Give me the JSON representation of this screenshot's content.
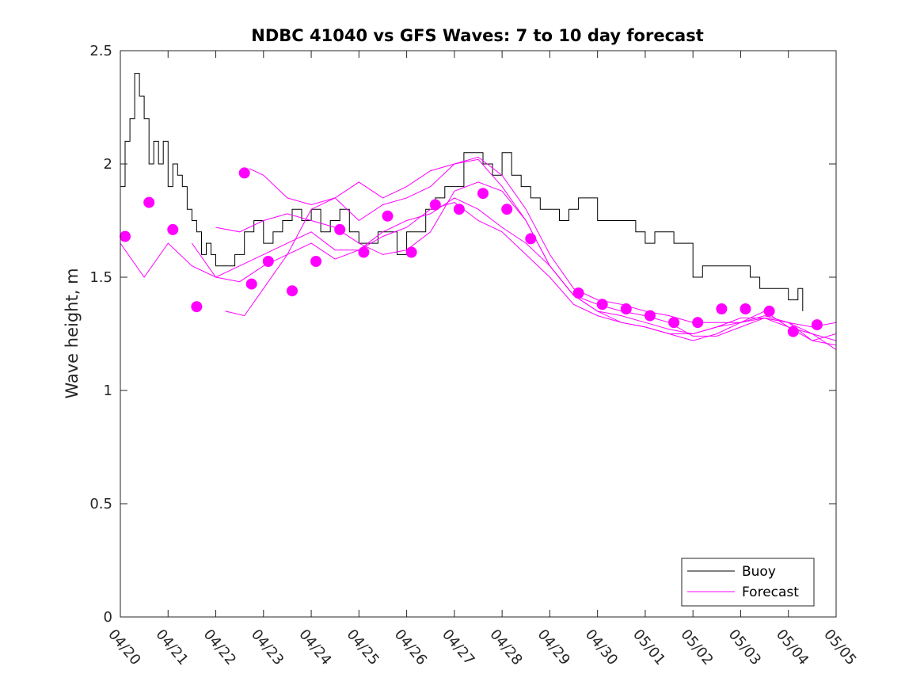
{
  "chart_data": {
    "type": "line",
    "title": "NDBC 41040 vs GFS Waves: 7 to 10 day forecast",
    "xlabel": "",
    "ylabel": "Wave height, m",
    "xlim": [
      "04/20",
      "05/05"
    ],
    "ylim": [
      0,
      2.5
    ],
    "x_ticks": [
      "04/20",
      "04/21",
      "04/22",
      "04/23",
      "04/24",
      "04/25",
      "04/26",
      "04/27",
      "04/28",
      "04/29",
      "04/30",
      "05/01",
      "05/02",
      "05/03",
      "05/04",
      "05/05"
    ],
    "y_ticks": [
      "0",
      "0.5",
      "1",
      "1.5",
      "2",
      "2.5"
    ],
    "grid": false,
    "legend_position": "bottom-right",
    "legend": [
      {
        "label": "Buoy",
        "color": "#000000"
      },
      {
        "label": "Forecast",
        "color": "#ff00ff"
      }
    ],
    "series": [
      {
        "name": "Buoy",
        "color": "#000000",
        "x_days": [
          0,
          0.1,
          0.2,
          0.3,
          0.4,
          0.5,
          0.6,
          0.7,
          0.8,
          0.9,
          1.0,
          1.1,
          1.2,
          1.3,
          1.4,
          1.5,
          1.6,
          1.7,
          1.8,
          1.9,
          2.0,
          2.2,
          2.4,
          2.6,
          2.8,
          3.0,
          3.2,
          3.4,
          3.6,
          3.8,
          4.0,
          4.2,
          4.4,
          4.6,
          4.8,
          5.0,
          5.2,
          5.4,
          5.6,
          5.8,
          6.0,
          6.2,
          6.4,
          6.6,
          6.8,
          7.0,
          7.2,
          7.4,
          7.6,
          7.8,
          8.0,
          8.2,
          8.4,
          8.6,
          8.8,
          9.0,
          9.2,
          9.4,
          9.6,
          9.8,
          10.0,
          10.2,
          10.4,
          10.6,
          10.8,
          11.0,
          11.2,
          11.4,
          11.6,
          11.8,
          12.0,
          12.2,
          12.4,
          12.6,
          12.8,
          13.0,
          13.2,
          13.4,
          13.6,
          13.8,
          14.0,
          14.2,
          14.3
        ],
        "values": [
          1.9,
          2.1,
          2.2,
          2.4,
          2.3,
          2.2,
          2.0,
          2.1,
          2.0,
          2.1,
          1.9,
          2.0,
          1.95,
          1.9,
          1.8,
          1.75,
          1.7,
          1.6,
          1.65,
          1.6,
          1.55,
          1.55,
          1.6,
          1.7,
          1.75,
          1.65,
          1.7,
          1.75,
          1.8,
          1.75,
          1.8,
          1.7,
          1.75,
          1.8,
          1.7,
          1.65,
          1.65,
          1.7,
          1.7,
          1.6,
          1.7,
          1.7,
          1.8,
          1.85,
          1.9,
          1.9,
          2.05,
          2.05,
          2.0,
          1.95,
          2.05,
          1.95,
          1.9,
          1.85,
          1.8,
          1.8,
          1.75,
          1.8,
          1.85,
          1.85,
          1.75,
          1.75,
          1.75,
          1.75,
          1.7,
          1.65,
          1.7,
          1.7,
          1.65,
          1.65,
          1.5,
          1.55,
          1.55,
          1.55,
          1.55,
          1.55,
          1.5,
          1.45,
          1.45,
          1.45,
          1.4,
          1.45,
          1.35
        ]
      },
      {
        "name": "Forecast run 1",
        "color": "#ff00ff",
        "x_days": [
          0,
          0.5,
          1.0,
          1.5,
          2.0,
          2.5,
          3.0,
          3.5,
          4.0,
          4.5,
          5.0,
          5.5,
          6.0,
          6.5,
          7.0,
          7.5,
          8.0,
          8.5,
          9.0,
          9.5,
          10.0,
          10.5,
          11.0,
          11.5,
          12.0,
          12.5,
          13.0,
          13.5,
          14.0,
          14.5,
          15.0
        ],
        "values": [
          1.65,
          1.5,
          1.65,
          1.55,
          1.5,
          1.55,
          1.6,
          1.65,
          1.7,
          1.62,
          1.62,
          1.68,
          1.72,
          1.8,
          1.83,
          1.75,
          1.7,
          1.6,
          1.5,
          1.38,
          1.33,
          1.3,
          1.28,
          1.25,
          1.25,
          1.28,
          1.32,
          1.32,
          1.28,
          1.25,
          1.18
        ]
      },
      {
        "name": "Forecast run 2",
        "color": "#ff00ff",
        "x_days": [
          1.5,
          2.0,
          2.5,
          3.0,
          3.5,
          4.0,
          4.5,
          5.0,
          5.5,
          6.0,
          6.5,
          7.0,
          7.5,
          8.0,
          8.5,
          9.0,
          9.5,
          10.0,
          10.5,
          11.0,
          11.5,
          12.0,
          12.5,
          13.0,
          13.5,
          14.0,
          14.5,
          15.0
        ],
        "values": [
          1.65,
          1.5,
          1.48,
          1.55,
          1.6,
          1.65,
          1.58,
          1.62,
          1.7,
          1.75,
          1.78,
          1.85,
          1.8,
          1.72,
          1.65,
          1.55,
          1.42,
          1.35,
          1.33,
          1.3,
          1.27,
          1.25,
          1.28,
          1.3,
          1.33,
          1.3,
          1.22,
          1.2
        ]
      },
      {
        "name": "Forecast run 3",
        "color": "#ff00ff",
        "x_days": [
          2.0,
          2.5,
          3.0,
          3.5,
          4.0,
          4.5,
          5.0,
          5.5,
          6.0,
          6.5,
          7.0,
          7.5,
          8.0,
          8.5,
          9.0,
          9.5,
          10.0,
          10.5,
          11.0,
          11.5,
          12.0,
          12.5,
          13.0,
          13.5,
          14.0,
          14.5,
          15.0
        ],
        "values": [
          1.72,
          1.7,
          1.75,
          1.78,
          1.75,
          1.72,
          1.65,
          1.6,
          1.62,
          1.7,
          1.88,
          1.92,
          1.88,
          1.75,
          1.55,
          1.42,
          1.38,
          1.35,
          1.33,
          1.3,
          1.24,
          1.24,
          1.28,
          1.32,
          1.3,
          1.25,
          1.22
        ]
      },
      {
        "name": "Forecast run 4",
        "color": "#ff00ff",
        "x_days": [
          2.2,
          2.6,
          3.0,
          3.5,
          4.0,
          4.5,
          5.0,
          5.5,
          6.0,
          6.5,
          7.0,
          7.5,
          8.0,
          8.5,
          9.0,
          9.5,
          10.0,
          10.5,
          11.0,
          11.5,
          12.0,
          12.5,
          13.0,
          13.5,
          14.0,
          14.5,
          15.0
        ],
        "values": [
          1.35,
          1.33,
          1.45,
          1.6,
          1.8,
          1.85,
          1.75,
          1.82,
          1.85,
          1.9,
          2.0,
          2.02,
          1.9,
          1.75,
          1.55,
          1.42,
          1.35,
          1.3,
          1.28,
          1.25,
          1.22,
          1.25,
          1.3,
          1.35,
          1.28,
          1.22,
          1.25
        ]
      },
      {
        "name": "Forecast run 5",
        "color": "#ff00ff",
        "x_days": [
          2.7,
          3.0,
          3.5,
          4.0,
          4.5,
          5.0,
          5.5,
          6.0,
          6.5,
          7.0,
          7.5,
          8.0,
          8.5,
          9.0,
          9.5,
          10.0,
          10.5,
          11.0,
          11.5,
          12.0,
          12.5,
          13.0,
          13.5,
          14.0,
          14.5,
          15.0
        ],
        "values": [
          1.98,
          1.95,
          1.85,
          1.82,
          1.85,
          1.92,
          1.85,
          1.9,
          1.97,
          2.0,
          2.03,
          1.95,
          1.8,
          1.6,
          1.45,
          1.4,
          1.38,
          1.35,
          1.33,
          1.3,
          1.3,
          1.3,
          1.32,
          1.3,
          1.28,
          1.3
        ]
      }
    ],
    "forecast_points": {
      "name": "Forecast",
      "color": "#ff00ff",
      "x_days": [
        0.1,
        0.6,
        1.1,
        1.6,
        2.6,
        2.75,
        3.1,
        3.6,
        4.1,
        4.6,
        5.1,
        5.6,
        6.1,
        6.6,
        7.1,
        7.6,
        8.1,
        8.6,
        9.6,
        10.1,
        10.6,
        11.1,
        11.6,
        12.1,
        12.6,
        13.1,
        13.6,
        14.1,
        14.6
      ],
      "values": [
        1.68,
        1.83,
        1.71,
        1.37,
        1.96,
        1.47,
        1.57,
        1.44,
        1.57,
        1.71,
        1.61,
        1.77,
        1.61,
        1.82,
        1.8,
        1.87,
        1.8,
        1.67,
        1.43,
        1.38,
        1.36,
        1.33,
        1.3,
        1.3,
        1.36,
        1.36,
        1.35,
        1.26,
        1.29
      ]
    }
  }
}
